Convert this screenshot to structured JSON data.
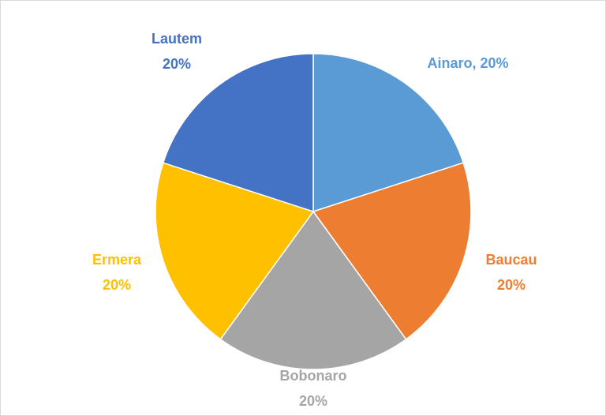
{
  "chart_data": {
    "type": "pie",
    "categories": [
      "Ainaro,",
      "Baucau",
      "Bobonaro",
      "Ermera",
      "Lautem"
    ],
    "values": [
      20,
      20,
      20,
      20,
      20
    ],
    "value_labels": [
      "20%",
      "20%",
      "20%",
      "20%",
      "20%"
    ],
    "colors": [
      "#5b9bd5",
      "#ed7d31",
      "#a5a5a5",
      "#ffc000",
      "#4472c4"
    ]
  }
}
